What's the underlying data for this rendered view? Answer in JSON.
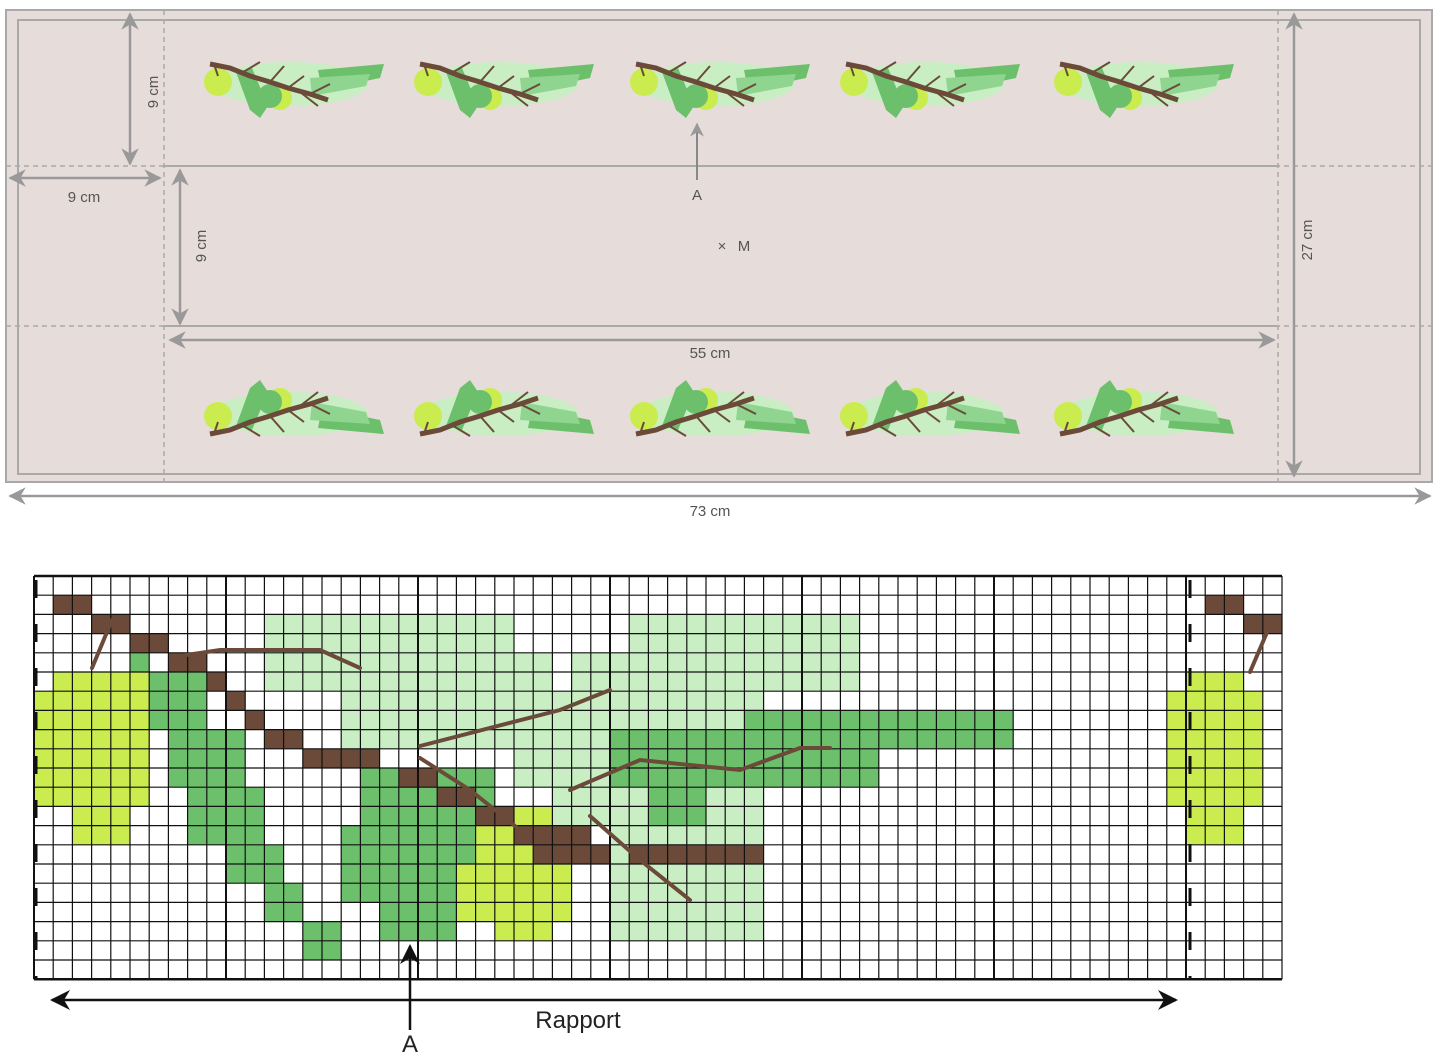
{
  "top_plan": {
    "labels": {
      "top_margin": "9 cm",
      "left_margin": "9 cm",
      "inner_margin": "9 cm",
      "inner_width": "55 cm",
      "total_width": "73 cm",
      "total_height": "27 cm",
      "motif_point": "A",
      "center": "M"
    },
    "motif_count_per_row": 5,
    "motif_rows": 2
  },
  "grid_chart": {
    "labels": {
      "repeat": "Rapport",
      "start_point": "A"
    }
  },
  "colors": {
    "cloth": "#e6dcda",
    "cloth_border": "#a9a9a9",
    "arrow_gray": "#999999",
    "branch_brown": "#6b4a3a",
    "dark_green": "#6cc06c",
    "light_green": "#c9eec4",
    "yellow_green": "#cbec4e",
    "grid_line": "#111111"
  }
}
